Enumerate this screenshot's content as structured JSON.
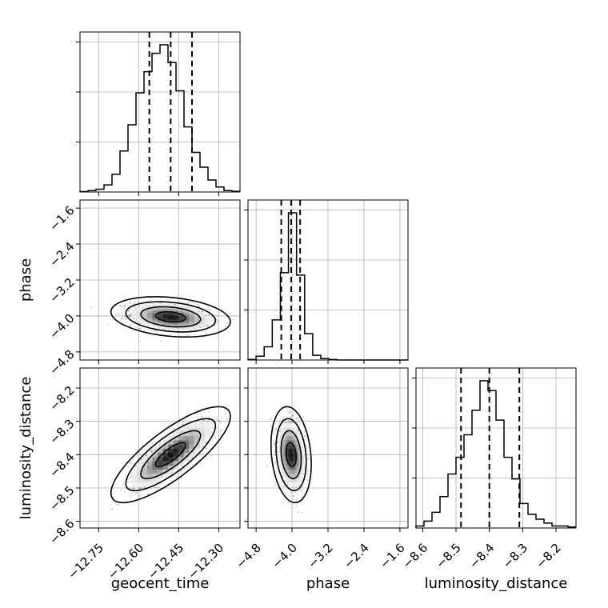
{
  "chart_data": {
    "type": "corner",
    "parameters": [
      {
        "name": "geocent_time",
        "range": [
          -12.82,
          -12.22
        ],
        "ticks": [
          -12.75,
          -12.6,
          -12.45,
          -12.3
        ],
        "tick_labels": [
          "−12.75",
          "−12.60",
          "−12.45",
          "−12.30"
        ],
        "quantiles": [
          -12.56,
          -12.48,
          -12.4
        ],
        "hist_edges": [
          -12.82,
          -12.79,
          -12.76,
          -12.73,
          -12.7,
          -12.67,
          -12.64,
          -12.61,
          -12.58,
          -12.55,
          -12.52,
          -12.49,
          -12.46,
          -12.43,
          -12.4,
          -12.37,
          -12.34,
          -12.31,
          -12.28,
          -12.25,
          -12.22
        ],
        "hist_counts": [
          0.5,
          2,
          4,
          10,
          25,
          58,
          95,
          140,
          170,
          196,
          208,
          183,
          143,
          92,
          56,
          35,
          17,
          7,
          2,
          1
        ]
      },
      {
        "name": "phase",
        "range": [
          -4.98,
          -1.42
        ],
        "ticks": [
          -4.8,
          -4.0,
          -3.2,
          -2.4,
          -1.6
        ],
        "tick_labels": [
          "−4.8",
          "−4.0",
          "−3.2",
          "−2.4",
          "−1.6"
        ],
        "quantiles": [
          -4.24,
          -4.02,
          -3.82
        ],
        "hist_edges": [
          -4.98,
          -4.8,
          -4.62,
          -4.44,
          -4.26,
          -4.08,
          -3.9,
          -3.72,
          -3.54,
          -3.36,
          -3.18,
          -3.0,
          -2.82,
          -2.64,
          -2.46,
          -2.28,
          -2.1,
          -1.92,
          -1.74,
          -1.56,
          -1.42
        ],
        "hist_counts": [
          1,
          8,
          28,
          85,
          185,
          312,
          180,
          56,
          10,
          3,
          1,
          0,
          0,
          0,
          0,
          0,
          0,
          0,
          0,
          0
        ]
      },
      {
        "name": "luminosity_distance",
        "range": [
          -8.62,
          -8.14
        ],
        "ticks": [
          -8.6,
          -8.5,
          -8.4,
          -8.3,
          -8.2
        ],
        "tick_labels": [
          "−8.6",
          "−8.5",
          "−8.4",
          "−8.3",
          "−8.2"
        ],
        "quantiles": [
          -8.485,
          -8.4,
          -8.31
        ],
        "hist_edges": [
          -8.62,
          -8.596,
          -8.572,
          -8.548,
          -8.524,
          -8.5,
          -8.476,
          -8.452,
          -8.428,
          -8.404,
          -8.38,
          -8.356,
          -8.332,
          -8.308,
          -8.284,
          -8.26,
          -8.236,
          -8.212,
          -8.188,
          -8.164,
          -8.14
        ],
        "hist_counts": [
          2,
          7,
          16,
          32,
          55,
          72,
          95,
          120,
          150,
          140,
          110,
          72,
          50,
          25,
          14,
          9,
          5,
          2,
          2,
          1
        ]
      }
    ],
    "joint": [
      {
        "pair": [
          0,
          1
        ],
        "mean": [
          -12.48,
          -4.02
        ],
        "sd": [
          0.07,
          0.14
        ],
        "corr": -0.25
      },
      {
        "pair": [
          0,
          2
        ],
        "mean": [
          -12.48,
          -8.4
        ],
        "sd": [
          0.07,
          0.045
        ],
        "corr": 0.8
      },
      {
        "pair": [
          1,
          2
        ],
        "mean": [
          -4.02,
          -8.4
        ],
        "sd": [
          0.14,
          0.045
        ],
        "corr": -0.2
      }
    ],
    "contour_levels_sigma": [
      0.5,
      1.0,
      1.5,
      2.0
    ],
    "grid": true,
    "quantile_line_style": "dashed"
  },
  "colors": {
    "hist": "#000000",
    "grid": "#b0b0b0",
    "points": "#000000",
    "contour": "#000000"
  }
}
